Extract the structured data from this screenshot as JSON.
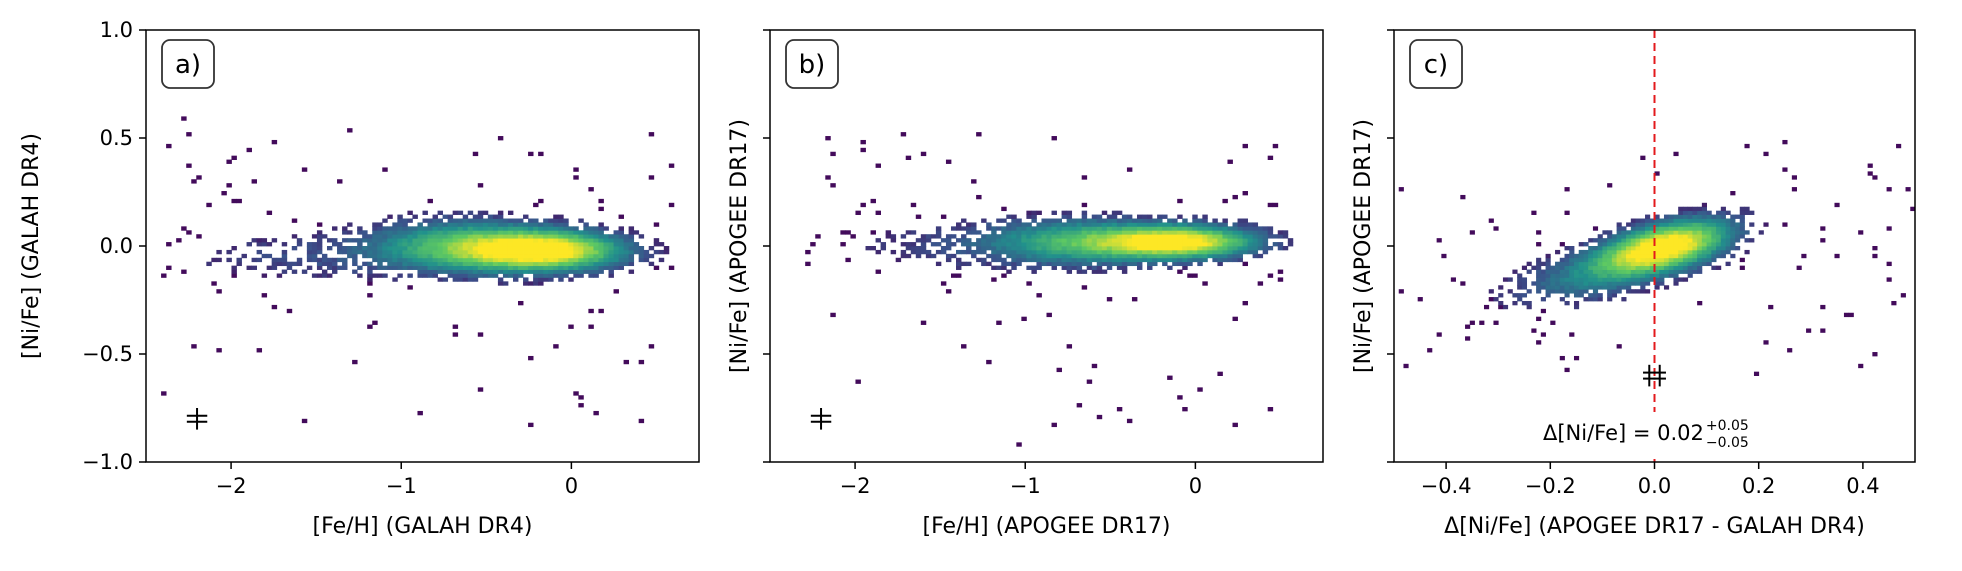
{
  "colormap": [
    "#440154",
    "#3b528b",
    "#21918c",
    "#5ec962",
    "#fde725"
  ],
  "chart_data": [
    {
      "type": "heatmap",
      "panel_label": "a)",
      "xlabel": "[Fe/H] (GALAH DR4)",
      "ylabel": "[Ni/Fe] (GALAH DR4)",
      "xlim": [
        -2.5,
        0.75
      ],
      "ylim": [
        -1.0,
        1.0
      ],
      "xticks": [
        -2,
        -1,
        0
      ],
      "xticklabels": [
        "−2",
        "−1",
        "0"
      ],
      "yticks": [
        -1.0,
        -0.5,
        0.0,
        0.5,
        1.0
      ],
      "yticklabels": [
        "−1.0",
        "−0.5",
        "0.0",
        "0.5",
        "1.0"
      ],
      "errorbars": [
        {
          "x": -2.2,
          "y": -0.8,
          "xerr": 0.06,
          "yerr": 0.05
        }
      ],
      "density_components": [
        {
          "x": -0.15,
          "y": -0.02,
          "sx": 0.3,
          "sy": 0.06,
          "weight": 1.0,
          "tilt": 0.0
        },
        {
          "x": -0.65,
          "y": 0.0,
          "sx": 0.35,
          "sy": 0.08,
          "weight": 0.55,
          "tilt": 0.0
        },
        {
          "x": -1.6,
          "y": -0.05,
          "sx": 0.5,
          "sy": 0.08,
          "weight": 0.12,
          "tilt": 0.0
        }
      ],
      "scatter_extent": {
        "x": [
          -2.4,
          0.6
        ],
        "y": [
          -0.9,
          0.6
        ]
      }
    },
    {
      "type": "heatmap",
      "panel_label": "b)",
      "xlabel": "[Fe/H] (APOGEE DR17)",
      "ylabel": "[Ni/Fe] (APOGEE DR17)",
      "xlim": [
        -2.5,
        0.75
      ],
      "ylim": [
        -1.0,
        1.0
      ],
      "xticks": [
        -2,
        -1,
        0
      ],
      "xticklabels": [
        "−2",
        "−1",
        "0"
      ],
      "yticks": [
        -1.0,
        -0.5,
        0.0,
        0.5,
        1.0
      ],
      "yticklabels": [],
      "errorbars": [
        {
          "x": -2.2,
          "y": -0.8,
          "xerr": 0.06,
          "yerr": 0.05
        }
      ],
      "density_components": [
        {
          "x": -0.1,
          "y": 0.02,
          "sx": 0.3,
          "sy": 0.05,
          "weight": 1.0,
          "tilt": 0.0
        },
        {
          "x": -0.7,
          "y": 0.02,
          "sx": 0.35,
          "sy": 0.07,
          "weight": 0.5,
          "tilt": 0.0
        },
        {
          "x": -1.5,
          "y": 0.0,
          "sx": 0.45,
          "sy": 0.08,
          "weight": 0.1,
          "tilt": 0.0
        }
      ],
      "scatter_extent": {
        "x": [
          -2.3,
          0.5
        ],
        "y": [
          -0.95,
          0.55
        ]
      }
    },
    {
      "type": "heatmap",
      "panel_label": "c)",
      "xlabel": "Δ[Ni/Fe] (APOGEE DR17 - GALAH DR4)",
      "ylabel": "[Ni/Fe] (APOGEE DR17)",
      "xlim": [
        -0.5,
        0.5
      ],
      "ylim": [
        -1.0,
        1.0
      ],
      "xticks": [
        -0.4,
        -0.2,
        0.0,
        0.2,
        0.4
      ],
      "xticklabels": [
        "−0.4",
        "−0.2",
        "0.0",
        "0.2",
        "0.4"
      ],
      "yticks": [
        -1.0,
        -0.5,
        0.0,
        0.5,
        1.0
      ],
      "yticklabels": [],
      "vline": {
        "x": 0.0,
        "color": "#e31a1c"
      },
      "errorbars": [
        {
          "x": -0.01,
          "y": -0.6,
          "xerr": 0.012,
          "yerr": 0.05
        },
        {
          "x": 0.01,
          "y": -0.6,
          "xerr": 0.012,
          "yerr": 0.05
        }
      ],
      "annotation": {
        "text": "Δ[Ni/Fe]  = 0.02",
        "sup": "+0.05",
        "sub": "−0.05"
      },
      "density_components": [
        {
          "x": 0.02,
          "y": 0.0,
          "sx": 0.08,
          "sy": 0.07,
          "weight": 1.0,
          "tilt": 0.5
        },
        {
          "x": -0.1,
          "y": -0.12,
          "sx": 0.12,
          "sy": 0.08,
          "weight": 0.3,
          "tilt": 0.5
        }
      ],
      "scatter_extent": {
        "x": [
          -0.5,
          0.5
        ],
        "y": [
          -0.6,
          0.5
        ]
      }
    }
  ]
}
